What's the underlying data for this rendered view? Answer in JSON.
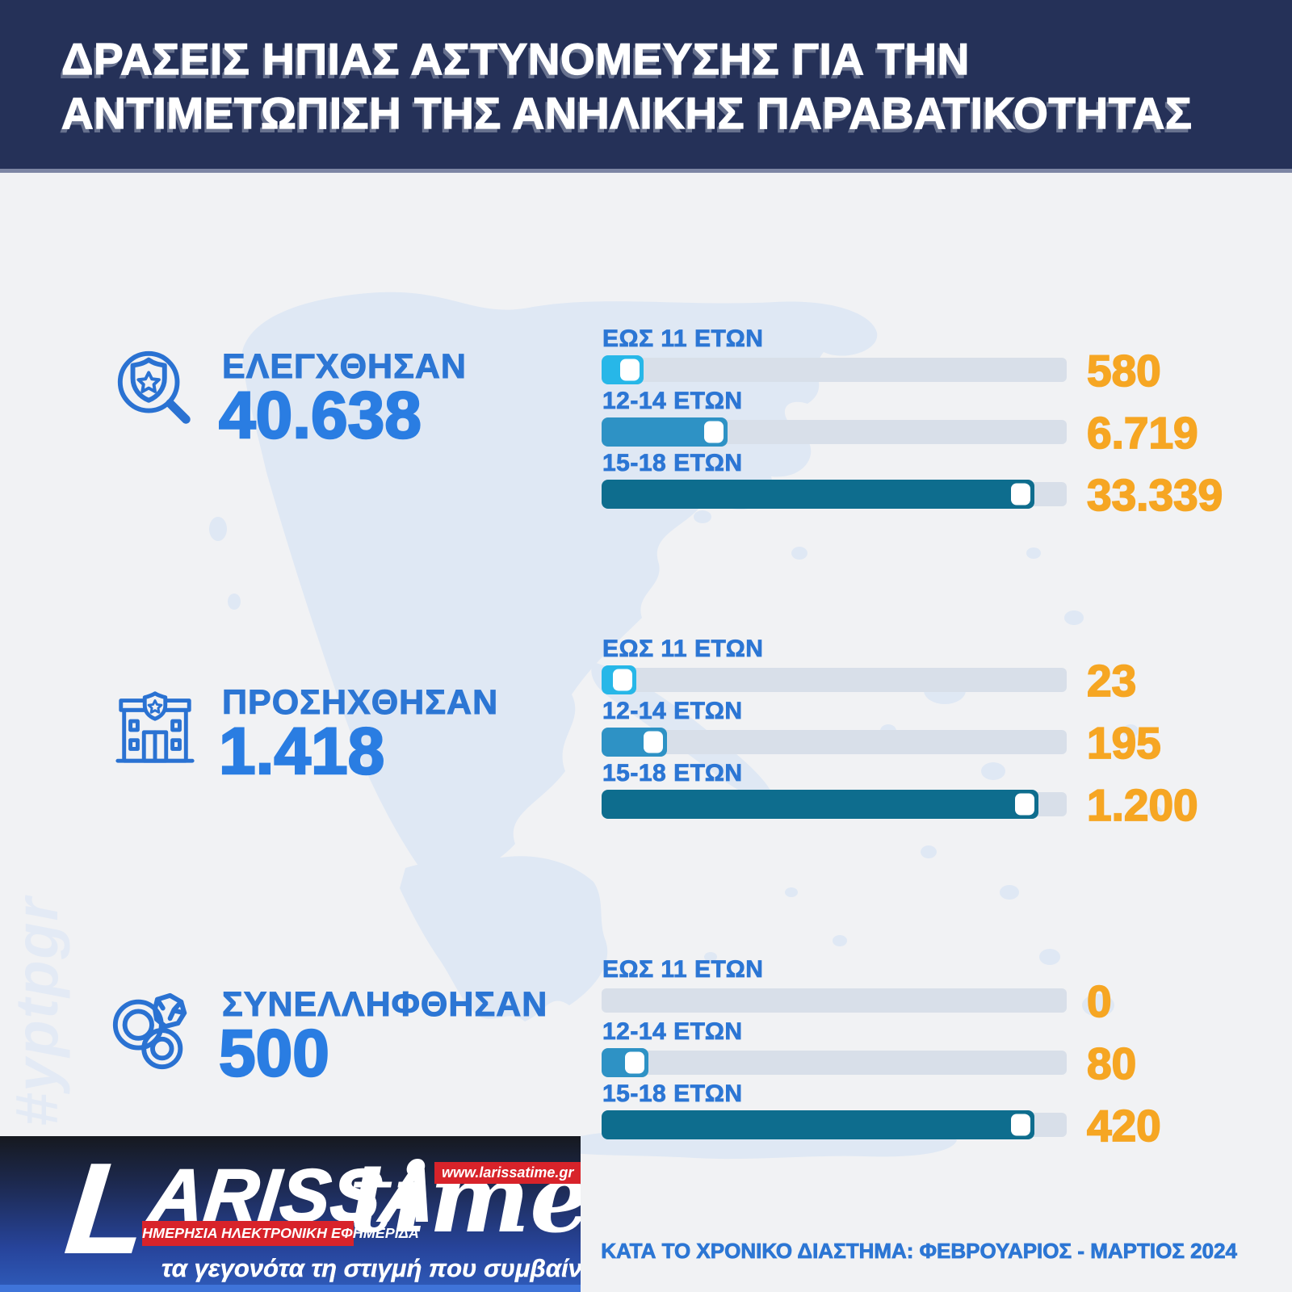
{
  "header": {
    "title_line1": "ΔΡΑΣΕΙΣ ΗΠΙΑΣ ΑΣΤΥΝΟΜΕΥΣΗΣ ΓΙΑ ΤΗΝ",
    "title_line2": "ΑΝΤΙΜΕΤΩΠΙΣΗ ΤΗΣ ΑΝΗΛΙΚΗΣ ΠΑΡΑΒΑΤΙΚΟΤΗΤΑΣ"
  },
  "watermark": "#yptpgr",
  "sections": [
    {
      "icon": "badge-magnifier-icon",
      "label": "ΕΛΕΓΧΘΗΣΑΝ",
      "total": "40.638",
      "rows": [
        {
          "label": "ΕΩΣ 11 ΕΤΩΝ",
          "value": "580",
          "fill_pct": 9
        },
        {
          "label": "12-14 ΕΤΩΝ",
          "value": "6.719",
          "fill_pct": 27
        },
        {
          "label": "15-18 ΕΤΩΝ",
          "value": "33.339",
          "fill_pct": 93
        }
      ]
    },
    {
      "icon": "police-station-icon",
      "label": "ΠΡΟΣΗΧΘΗΣΑΝ",
      "total": "1.418",
      "rows": [
        {
          "label": "ΕΩΣ 11 ΕΤΩΝ",
          "value": "23",
          "fill_pct": 7.5
        },
        {
          "label": "12-14 ΕΤΩΝ",
          "value": "195",
          "fill_pct": 14
        },
        {
          "label": "15-18 ΕΤΩΝ",
          "value": "1.200",
          "fill_pct": 94
        }
      ]
    },
    {
      "icon": "handcuffs-icon",
      "label": "ΣΥΝΕΛΛΗΦΘΗΣΑΝ",
      "total": "500",
      "rows": [
        {
          "label": "ΕΩΣ 11 ΕΤΩΝ",
          "value": "0",
          "fill_pct": 0
        },
        {
          "label": "12-14 ΕΤΩΝ",
          "value": "80",
          "fill_pct": 10
        },
        {
          "label": "15-18 ΕΤΩΝ",
          "value": "420",
          "fill_pct": 93
        }
      ]
    }
  ],
  "footer": {
    "note": "ΚΑΤΑ ΤΟ ΧΡΟΝΙΚΟ ΔΙΑΣΤΗΜΑ: ΦΕΒΡΟΥΑΡΙΟΣ - ΜΑΡΤΙΟΣ 2024"
  },
  "logo": {
    "initial": "L",
    "rest": "ARISSA",
    "sub": "time",
    "url": "www.larissatime.gr",
    "strip": "ΗΜΕΡΗΣΙΑ ΗΛΕΚΤΡΟΝΙΚΗ ΕΦΗΜΕΡΙΔΑ",
    "tagline": "τα γεγονότα τη στιγμή που συμβαίνουν"
  },
  "palette": {
    "header_navy": "#253158",
    "background": "#f1f2f4",
    "map_watermark": "#dfe8f4",
    "track": "#d8dfe9",
    "bar_fill_0_11": "#27b7e8",
    "bar_fill_12_14": "#2e92c5",
    "bar_fill_15_18": "#0e6d8e",
    "value_orange": "#f6a623",
    "label_blue": "#2c76d4",
    "total_blue": "#2a7de2",
    "logo_red": "#d8232a",
    "logo_strip_blue": "#3f74d9"
  },
  "chart_data": [
    {
      "type": "bar",
      "orientation": "horizontal",
      "title": "ΕΛΕΓΧΘΗΣΑΝ",
      "total": 40638,
      "categories": [
        "ΕΩΣ 11 ΕΤΩΝ",
        "12-14 ΕΤΩΝ",
        "15-18 ΕΤΩΝ"
      ],
      "values": [
        580,
        6719,
        33339
      ],
      "value_labels": [
        "580",
        "6.719",
        "33.339"
      ],
      "bar_colors": [
        "#27b7e8",
        "#2e92c5",
        "#0e6d8e"
      ],
      "legend_position": "none"
    },
    {
      "type": "bar",
      "orientation": "horizontal",
      "title": "ΠΡΟΣΗΧΘΗΣΑΝ",
      "total": 1418,
      "categories": [
        "ΕΩΣ 11 ΕΤΩΝ",
        "12-14 ΕΤΩΝ",
        "15-18 ΕΤΩΝ"
      ],
      "values": [
        23,
        195,
        1200
      ],
      "value_labels": [
        "23",
        "195",
        "1.200"
      ],
      "bar_colors": [
        "#27b7e8",
        "#2e92c5",
        "#0e6d8e"
      ],
      "legend_position": "none"
    },
    {
      "type": "bar",
      "orientation": "horizontal",
      "title": "ΣΥΝΕΛΛΗΦΘΗΣΑΝ",
      "total": 500,
      "categories": [
        "ΕΩΣ 11 ΕΤΩΝ",
        "12-14 ΕΤΩΝ",
        "15-18 ΕΤΩΝ"
      ],
      "values": [
        0,
        80,
        420
      ],
      "value_labels": [
        "0",
        "80",
        "420"
      ],
      "bar_colors": [
        "#27b7e8",
        "#2e92c5",
        "#0e6d8e"
      ],
      "legend_position": "none"
    }
  ]
}
